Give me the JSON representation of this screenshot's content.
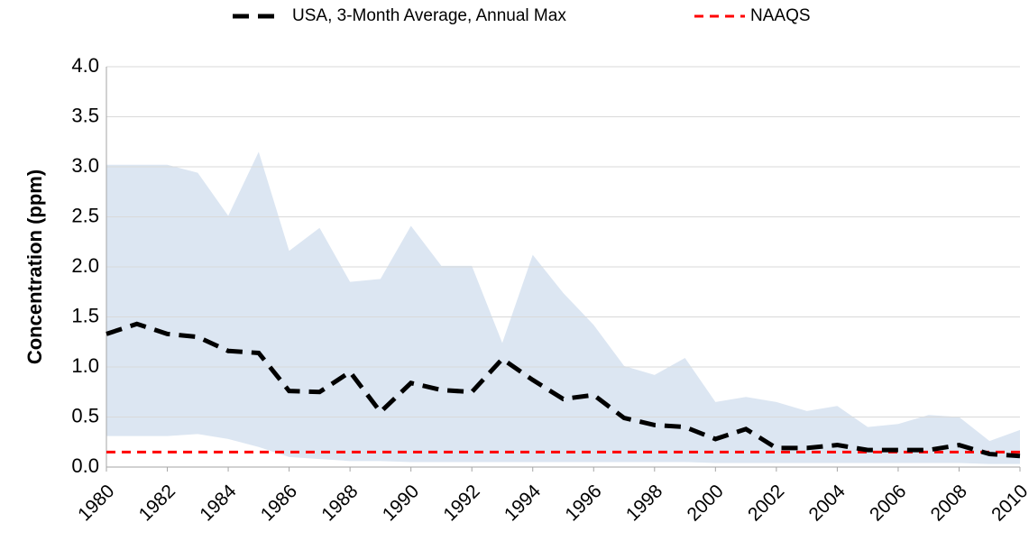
{
  "chart_data": {
    "type": "line",
    "y_label": "Concentration (ppm)",
    "x": [
      1980,
      1981,
      1982,
      1983,
      1984,
      1985,
      1986,
      1987,
      1988,
      1989,
      1990,
      1991,
      1992,
      1993,
      1994,
      1995,
      1996,
      1997,
      1998,
      1999,
      2000,
      2001,
      2002,
      2003,
      2004,
      2005,
      2006,
      2007,
      2008,
      2009,
      2010
    ],
    "series": [
      {
        "name": "USA, 3-Month Average, Annual Max",
        "color": "#000000",
        "values": [
          1.33,
          1.43,
          1.33,
          1.3,
          1.16,
          1.14,
          0.76,
          0.75,
          0.95,
          0.55,
          0.84,
          0.77,
          0.75,
          1.08,
          0.87,
          0.68,
          0.72,
          0.49,
          0.42,
          0.4,
          0.28,
          0.38,
          0.19,
          0.19,
          0.22,
          0.17,
          0.17,
          0.17,
          0.22,
          0.13,
          0.11
        ]
      }
    ],
    "band": {
      "color": "#dce6f2",
      "upper": [
        3.02,
        3.02,
        3.02,
        2.94,
        2.51,
        3.15,
        2.16,
        2.39,
        1.85,
        1.88,
        2.41,
        2.01,
        2.01,
        1.24,
        2.12,
        1.74,
        1.42,
        1.01,
        0.92,
        1.09,
        0.65,
        0.7,
        0.65,
        0.56,
        0.61,
        0.4,
        0.43,
        0.52,
        0.5,
        0.26,
        0.37
      ],
      "lower": [
        0.31,
        0.31,
        0.31,
        0.33,
        0.28,
        0.2,
        0.1,
        0.08,
        0.06,
        0.06,
        0.05,
        0.05,
        0.05,
        0.05,
        0.05,
        0.05,
        0.05,
        0.05,
        0.05,
        0.05,
        0.04,
        0.04,
        0.04,
        0.04,
        0.04,
        0.04,
        0.04,
        0.04,
        0.04,
        0.03,
        0.03
      ]
    },
    "reference_lines": [
      {
        "name": "NAAQS",
        "value": 0.15,
        "color": "#ff0000"
      }
    ],
    "xlim": [
      1980,
      2010
    ],
    "xticks": [
      1980,
      1982,
      1984,
      1986,
      1988,
      1990,
      1992,
      1994,
      1996,
      1998,
      2000,
      2002,
      2004,
      2006,
      2008,
      2010
    ],
    "ylim": [
      0,
      4
    ],
    "yticks": [
      {
        "value": 0,
        "label": "0.0"
      },
      0.5,
      {
        "value": 1,
        "label": "1.0"
      },
      1.5,
      {
        "value": 2,
        "label": "2.0"
      },
      2.5,
      {
        "value": 3,
        "label": "3.0"
      },
      3.5,
      {
        "value": 4,
        "label": "4.0"
      }
    ],
    "grid": true,
    "legend": "top"
  }
}
